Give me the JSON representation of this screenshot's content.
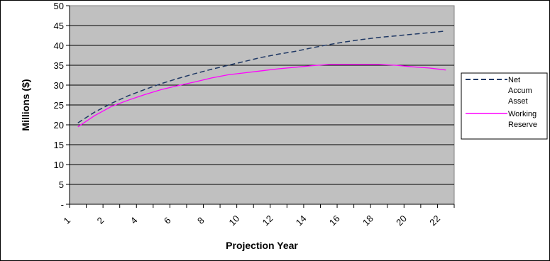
{
  "chart_data": {
    "type": "line",
    "xlabel": "Projection Year",
    "ylabel": "Millions ($)",
    "xlim": [
      1,
      24
    ],
    "ylim": [
      0,
      50
    ],
    "y_ticks": [
      {
        "value": 0,
        "label": "-"
      },
      {
        "value": 5,
        "label": "5"
      },
      {
        "value": 10,
        "label": "10"
      },
      {
        "value": 15,
        "label": "15"
      },
      {
        "value": 20,
        "label": "20"
      },
      {
        "value": 25,
        "label": "25"
      },
      {
        "value": 30,
        "label": "30"
      },
      {
        "value": 35,
        "label": "35"
      },
      {
        "value": 40,
        "label": "40"
      },
      {
        "value": 45,
        "label": "45"
      },
      {
        "value": 50,
        "label": "50"
      }
    ],
    "x_ticks": [
      {
        "value": 1,
        "label": "1"
      },
      {
        "value": 3,
        "label": "2"
      },
      {
        "value": 5,
        "label": "4"
      },
      {
        "value": 7,
        "label": "6"
      },
      {
        "value": 9,
        "label": "8"
      },
      {
        "value": 11,
        "label": "10"
      },
      {
        "value": 13,
        "label": "12"
      },
      {
        "value": 15,
        "label": "14"
      },
      {
        "value": 17,
        "label": "16"
      },
      {
        "value": 19,
        "label": "18"
      },
      {
        "value": 21,
        "label": "20"
      },
      {
        "value": 23,
        "label": "22"
      }
    ],
    "grid": "horizontal",
    "plot_background": "#c0c0c0",
    "legend_position": "right",
    "x": [
      1.5,
      2.5,
      3.5,
      4.5,
      5.5,
      6.5,
      7.5,
      8.5,
      9.5,
      10.5,
      11.5,
      12.5,
      13.5,
      14.5,
      15.5,
      16.5,
      17.5,
      18.5,
      19.5,
      20.5,
      21.5,
      22.5,
      23.5
    ],
    "series": [
      {
        "name": "Net Accum Asset",
        "color": "#1f3864",
        "dash": "dashed",
        "values": [
          20.5,
          23.2,
          25.4,
          27.3,
          28.9,
          30.4,
          31.7,
          32.9,
          34.0,
          35.0,
          36.0,
          37.0,
          37.8,
          38.5,
          39.4,
          40.2,
          40.9,
          41.5,
          42.0,
          42.4,
          42.8,
          43.2,
          43.6
        ]
      },
      {
        "name": "Working Reserve",
        "color": "#ff00ff",
        "dash": "solid",
        "values": [
          19.5,
          22.3,
          24.6,
          26.2,
          27.6,
          28.9,
          29.9,
          30.8,
          31.8,
          32.6,
          33.1,
          33.6,
          34.1,
          34.5,
          34.9,
          35.2,
          35.2,
          35.2,
          35.2,
          35.0,
          34.6,
          34.3,
          33.8
        ]
      }
    ],
    "legend_lines": {
      "series_0": [
        "Net",
        "Accum",
        "Asset"
      ],
      "series_1": [
        "Working",
        "Reserve"
      ]
    }
  }
}
